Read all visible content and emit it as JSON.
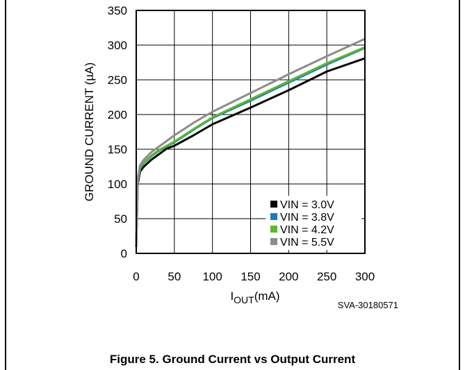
{
  "chart_data": {
    "type": "line",
    "xlabel_main": "I",
    "xlabel_sub": "OUT",
    "xlabel_unit": "(mA)",
    "ylabel": "GROUND CURRENT (µA)",
    "xlim": [
      0,
      300
    ],
    "ylim": [
      0,
      350
    ],
    "x_ticks": [
      0,
      50,
      100,
      150,
      200,
      250,
      300
    ],
    "y_ticks": [
      0,
      50,
      100,
      150,
      200,
      250,
      300,
      350
    ],
    "grid": true,
    "legend_position": "bottom-right",
    "figure_code": "SVA-30180571",
    "series": [
      {
        "name": "VIN = 3.0V",
        "color": "#000000",
        "points": [
          [
            0,
            10
          ],
          [
            2,
            100
          ],
          [
            5,
            118
          ],
          [
            10,
            125
          ],
          [
            20,
            135
          ],
          [
            30,
            143
          ],
          [
            40,
            151
          ],
          [
            50,
            155
          ],
          [
            75,
            170
          ],
          [
            100,
            186
          ],
          [
            150,
            210
          ],
          [
            200,
            235
          ],
          [
            250,
            262
          ],
          [
            300,
            281
          ]
        ]
      },
      {
        "name": "VIN = 3.8V",
        "color": "#1a7fc1",
        "points": [
          [
            0,
            12
          ],
          [
            2,
            104
          ],
          [
            5,
            122
          ],
          [
            10,
            130
          ],
          [
            20,
            140
          ],
          [
            30,
            148
          ],
          [
            40,
            154
          ],
          [
            50,
            160
          ],
          [
            75,
            178
          ],
          [
            100,
            195
          ],
          [
            150,
            220
          ],
          [
            200,
            246
          ],
          [
            250,
            272
          ],
          [
            300,
            296
          ]
        ]
      },
      {
        "name": "VIN = 4.2V",
        "color": "#5cb82a",
        "points": [
          [
            0,
            12
          ],
          [
            2,
            105
          ],
          [
            5,
            123
          ],
          [
            10,
            131
          ],
          [
            20,
            141
          ],
          [
            30,
            149
          ],
          [
            40,
            155
          ],
          [
            50,
            161
          ],
          [
            75,
            179
          ],
          [
            100,
            196
          ],
          [
            150,
            222
          ],
          [
            200,
            248
          ],
          [
            250,
            274
          ],
          [
            300,
            297
          ]
        ]
      },
      {
        "name": "VIN = 5.5V",
        "color": "#8c8c8c",
        "points": [
          [
            0,
            13
          ],
          [
            2,
            108
          ],
          [
            5,
            127
          ],
          [
            10,
            135
          ],
          [
            20,
            146
          ],
          [
            30,
            154
          ],
          [
            40,
            162
          ],
          [
            50,
            170
          ],
          [
            75,
            188
          ],
          [
            100,
            204
          ],
          [
            150,
            231
          ],
          [
            200,
            258
          ],
          [
            250,
            284
          ],
          [
            300,
            309
          ]
        ]
      }
    ]
  },
  "caption": "Figure 5. Ground Current vs Output Current"
}
